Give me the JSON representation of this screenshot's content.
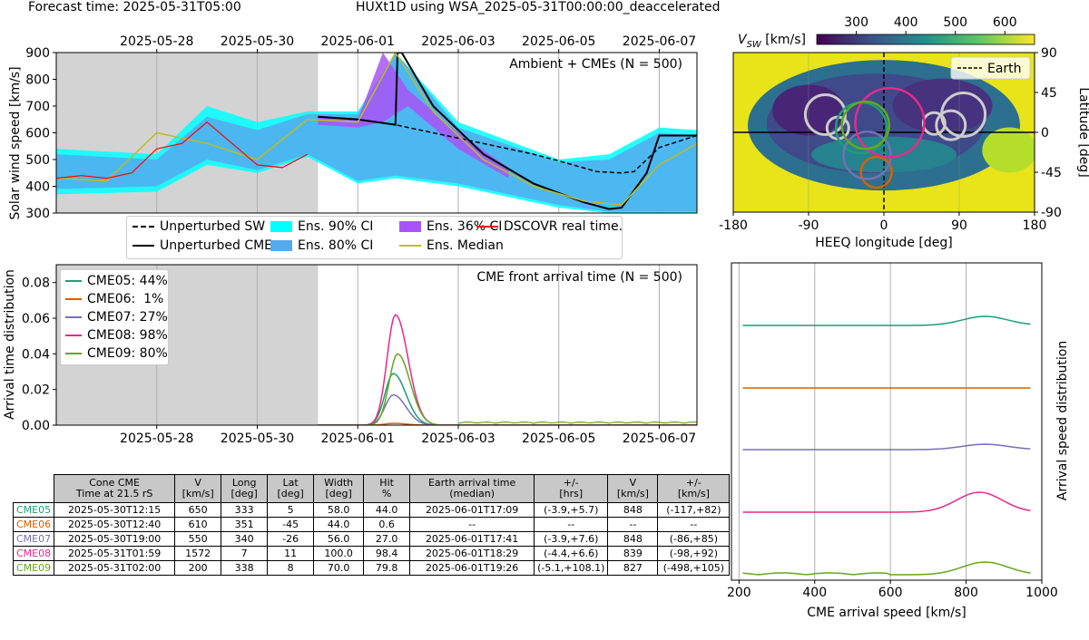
{
  "header": {
    "forecast_time": "Forecast time: 2025-05-31T05:00",
    "model_title": "HUXt1D using WSA_2025-05-31T00:00:00_deaccelerated"
  },
  "top_panel": {
    "annotation": "Ambient + CMEs (N = 500)",
    "ylabel": "Solar wind speed [km/s]",
    "x_ticks": [
      "2025-05-28",
      "2025-05-30",
      "2025-06-01",
      "2025-06-03",
      "2025-06-05",
      "2025-06-07"
    ],
    "y_ticks": [
      "300",
      "400",
      "500",
      "600",
      "700",
      "800",
      "900"
    ],
    "legend": [
      {
        "label": "Unperturbed SW",
        "kind": "dashed",
        "color": "#000000"
      },
      {
        "label": "Unperturbed CME",
        "kind": "line",
        "color": "#000000"
      },
      {
        "label": "Ens. 90% CI",
        "kind": "patch",
        "color": "#00ffff"
      },
      {
        "label": "Ens. 80% CI",
        "kind": "patch",
        "color": "#55aaee"
      },
      {
        "label": "Ens. 36% CI",
        "kind": "patch",
        "color": "#a855f7"
      },
      {
        "label": "Ens. Median",
        "kind": "line",
        "color": "#bcbd22"
      },
      {
        "label": "DSCOVR real time.",
        "kind": "line",
        "color": "#ff0000"
      }
    ]
  },
  "arrival_panel": {
    "annotation": "CME front arrival time (N = 500)",
    "ylabel": "Arrival time distribution",
    "x_ticks": [
      "2025-05-28",
      "2025-05-30",
      "2025-06-01",
      "2025-06-03",
      "2025-06-05",
      "2025-06-07"
    ],
    "y_ticks": [
      "0.00",
      "0.02",
      "0.04",
      "0.06",
      "0.08"
    ],
    "legend": [
      {
        "label": "CME05: 44%",
        "color": "#1b9e77"
      },
      {
        "label": "CME06:  1%",
        "color": "#d95f02"
      },
      {
        "label": "CME07: 27%",
        "color": "#7570b3"
      },
      {
        "label": "CME08: 98%",
        "color": "#e7298a"
      },
      {
        "label": "CME09: 80%",
        "color": "#66a61e"
      }
    ]
  },
  "map_panel": {
    "colorbar_label": "V_SW [km/s]",
    "colorbar_ticks": [
      "300",
      "400",
      "500",
      "600"
    ],
    "xlabel": "HEEQ longitude [deg]",
    "ylabel": "Latitude [deg]",
    "x_ticks": [
      "-180",
      "-90",
      "0",
      "90",
      "180"
    ],
    "y_ticks": [
      "90",
      "45",
      "0",
      "-45",
      "-90"
    ],
    "legend_label": "Earth"
  },
  "speed_panel": {
    "xlabel": "CME arrival speed [km/s]",
    "ylabel": "Arrival speed distribution",
    "x_ticks": [
      "200",
      "400",
      "600",
      "800",
      "1000"
    ]
  },
  "table": {
    "headers": [
      "Cone CME\nTime at 21.5 rS",
      "V\n[km/s]",
      "Long\n[deg]",
      "Lat\n[deg]",
      "Width\n[deg]",
      "Hit\n%",
      "Earth arrival time\n(median)",
      "+/-\n[hrs]",
      "V\n[km/s]",
      "+/-\n[km/s]"
    ],
    "rows": [
      {
        "label": "CME05",
        "color": "#1b9e77",
        "cells": [
          "2025-05-30T12:15",
          "650",
          "333",
          "5",
          "58.0",
          "44.0",
          "2025-06-01T17:09",
          "(-3.9,+5.7)",
          "848",
          "(-117,+82)"
        ]
      },
      {
        "label": "CME06",
        "color": "#d95f02",
        "cells": [
          "2025-05-30T12:40",
          "610",
          "351",
          "-45",
          "44.0",
          "0.6",
          "--",
          "--",
          "--",
          "--"
        ]
      },
      {
        "label": "CME07",
        "color": "#7570b3",
        "cells": [
          "2025-05-30T19:00",
          "550",
          "340",
          "-26",
          "56.0",
          "27.0",
          "2025-06-01T17:41",
          "(-3.9,+7.6)",
          "848",
          "(-86,+85)"
        ]
      },
      {
        "label": "CME08",
        "color": "#e7298a",
        "cells": [
          "2025-05-31T01:59",
          "1572",
          "7",
          "11",
          "100.0",
          "98.4",
          "2025-06-01T18:29",
          "(-4.4,+6.6)",
          "839",
          "(-98,+92)"
        ]
      },
      {
        "label": "CME09",
        "color": "#66a61e",
        "cells": [
          "2025-05-31T02:00",
          "200",
          "338",
          "8",
          "70.0",
          "79.8",
          "2025-06-01T19:26",
          "(-5.1,+108.1)",
          "827",
          "(-498,+105)"
        ]
      }
    ]
  },
  "chart_data": [
    {
      "type": "line",
      "title": "Ambient + CMEs (N = 500)",
      "ylabel": "Solar wind speed [km/s]",
      "xlim": [
        "2025-05-26",
        "2025-06-07T18:00"
      ],
      "ylim": [
        300,
        900
      ],
      "forecast_start": "2025-05-31T05:00",
      "series": [
        {
          "name": "Unperturbed SW",
          "style": "dashed",
          "x": [
            "2025-05-31T05:00",
            "2025-06-01T00:00",
            "2025-06-01T18:00",
            "2025-06-02T12:00",
            "2025-06-03T12:00",
            "2025-06-04T12:00",
            "2025-06-05T00:00",
            "2025-06-05T18:00",
            "2025-06-06T06:00",
            "2025-06-06T12:00",
            "2025-06-07T00:00",
            "2025-06-07T18:00"
          ],
          "y": [
            660,
            650,
            630,
            600,
            560,
            520,
            495,
            455,
            450,
            455,
            545,
            590
          ]
        },
        {
          "name": "Unperturbed CME",
          "style": "solid",
          "x": [
            "2025-05-31T05:00",
            "2025-06-01T00:00",
            "2025-06-01T18:00",
            "2025-06-01T19:00",
            "2025-06-01T21:00",
            "2025-06-02T12:00",
            "2025-06-03T12:00",
            "2025-06-04T12:00",
            "2025-06-05T12:00",
            "2025-06-06T00:00",
            "2025-06-06T06:00",
            "2025-06-06T18:00",
            "2025-06-07T00:00",
            "2025-06-07T18:00"
          ],
          "y": [
            660,
            650,
            630,
            900,
            900,
            700,
            520,
            410,
            340,
            315,
            320,
            450,
            590,
            590
          ]
        },
        {
          "name": "Ens. Median",
          "style": "solid",
          "x": [
            "2025-05-26",
            "2025-05-27",
            "2025-05-28",
            "2025-05-29",
            "2025-05-30",
            "2025-05-31",
            "2025-06-01",
            "2025-06-01T18:00",
            "2025-06-02T12:00",
            "2025-06-03T12:00",
            "2025-06-04T12:00",
            "2025-06-05T12:00",
            "2025-06-06T06:00",
            "2025-06-07",
            "2025-06-07T18:00"
          ],
          "y": [
            430,
            420,
            600,
            560,
            500,
            650,
            640,
            900,
            680,
            500,
            400,
            345,
            330,
            480,
            560
          ]
        },
        {
          "name": "DSCOVR real time.",
          "style": "solid",
          "x": [
            "2025-05-26",
            "2025-05-26T12:00",
            "2025-05-27",
            "2025-05-27T12:00",
            "2025-05-28",
            "2025-05-28T12:00",
            "2025-05-29",
            "2025-05-29T12:00",
            "2025-05-30",
            "2025-05-30T12:00",
            "2025-05-31"
          ],
          "y": [
            430,
            440,
            430,
            450,
            540,
            560,
            640,
            560,
            480,
            470,
            520
          ]
        }
      ],
      "bands": [
        {
          "name": "Ens. 90% CI",
          "x": [
            "2025-05-26",
            "2025-05-28",
            "2025-05-29",
            "2025-05-30",
            "2025-05-31",
            "2025-06-01",
            "2025-06-01T18:00",
            "2025-06-03",
            "2025-06-05",
            "2025-06-06",
            "2025-06-07",
            "2025-06-07T18:00"
          ],
          "lower": [
            370,
            380,
            480,
            450,
            510,
            410,
            430,
            400,
            320,
            300,
            300,
            300
          ],
          "upper": [
            540,
            520,
            700,
            640,
            680,
            680,
            900,
            640,
            500,
            520,
            620,
            610
          ]
        },
        {
          "name": "Ens. 80% CI",
          "x": [
            "2025-05-26",
            "2025-05-28",
            "2025-05-29",
            "2025-05-30",
            "2025-05-31",
            "2025-06-01",
            "2025-06-01T18:00",
            "2025-06-03",
            "2025-06-05",
            "2025-06-06",
            "2025-06-07",
            "2025-06-07T18:00"
          ],
          "lower": [
            390,
            400,
            500,
            460,
            520,
            420,
            440,
            410,
            330,
            305,
            305,
            305
          ],
          "upper": [
            520,
            500,
            660,
            610,
            670,
            670,
            900,
            620,
            490,
            500,
            600,
            590
          ]
        },
        {
          "name": "Ens. 36% CI",
          "x": [
            "2025-05-31T05:00",
            "2025-06-01",
            "2025-06-01T12:00",
            "2025-06-02",
            "2025-06-03",
            "2025-06-04"
          ],
          "lower": [
            630,
            620,
            640,
            700,
            540,
            430
          ],
          "upper": [
            660,
            650,
            900,
            760,
            600,
            470
          ]
        }
      ]
    },
    {
      "type": "line",
      "title": "CME front arrival time (N = 500)",
      "ylabel": "Arrival time distribution",
      "xlim": [
        "2025-05-26",
        "2025-06-07T18:00"
      ],
      "ylim": [
        0,
        0.09
      ],
      "series": [
        {
          "name": "CME05: 44%",
          "peak_x": "2025-06-01T17:00",
          "peak_y": 0.029
        },
        {
          "name": "CME06:  1%",
          "peak_x": "2025-06-01T17:00",
          "peak_y": 0.001
        },
        {
          "name": "CME07: 27%",
          "peak_x": "2025-06-01T17:00",
          "peak_y": 0.017
        },
        {
          "name": "CME08: 98%",
          "peak_x": "2025-06-01T18:00",
          "peak_y": 0.062
        },
        {
          "name": "CME09: 80%",
          "peak_x": "2025-06-01T19:00",
          "peak_y": 0.04
        }
      ]
    },
    {
      "type": "heatmap",
      "xlabel": "HEEQ longitude [deg]",
      "ylabel": "Latitude [deg]",
      "xlim": [
        -180,
        180
      ],
      "ylim": [
        -90,
        90
      ],
      "colorbar": {
        "label": "V_SW [km/s]",
        "range": [
          220,
          660
        ],
        "colormap": "viridis"
      },
      "cme_cones": [
        {
          "cme": "CME05",
          "lon": -27,
          "lat": 5
        },
        {
          "cme": "CME06",
          "lon": -9,
          "lat": -45
        },
        {
          "cme": "CME07",
          "lon": -20,
          "lat": -26
        },
        {
          "cme": "CME08",
          "lon": 7,
          "lat": 11
        },
        {
          "cme": "CME09",
          "lon": -22,
          "lat": 8
        }
      ],
      "earth": {
        "lon": 0,
        "lat_range": [
          -90,
          90
        ]
      }
    },
    {
      "type": "line",
      "xlabel": "CME arrival speed [km/s]",
      "ylabel": "Arrival speed distribution",
      "xlim": [
        180,
        1000
      ],
      "series": [
        {
          "name": "CME05",
          "peak_x": 850
        },
        {
          "name": "CME06",
          "peak_x": null
        },
        {
          "name": "CME07",
          "peak_x": 850
        },
        {
          "name": "CME08",
          "peak_x": 835
        },
        {
          "name": "CME09",
          "peak_x": 850
        }
      ]
    }
  ],
  "colors": {
    "forecast_shade": "#d3d3d3",
    "ci90": "#00ffff",
    "ci80": "#55aaee",
    "ci36": "#a855f7",
    "median": "#bcbd22",
    "dscovr": "#ff0000",
    "cme05": "#1b9e77",
    "cme06": "#d95f02",
    "cme07": "#7570b3",
    "cme08": "#e7298a",
    "cme09": "#66a61e"
  }
}
